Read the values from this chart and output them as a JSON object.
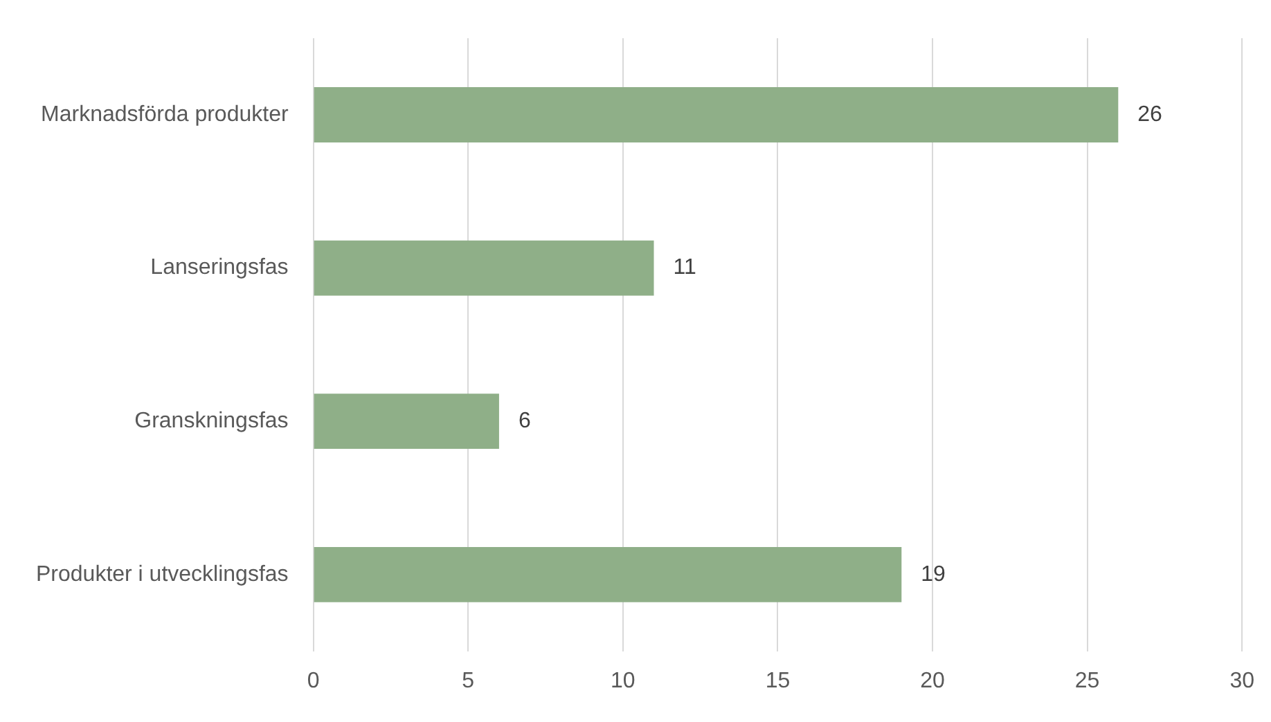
{
  "chart_data": {
    "type": "bar",
    "orientation": "horizontal",
    "categories": [
      "Marknadsförda produkter",
      "Lanseringsfas",
      "Granskningsfas",
      "Produkter i utvecklingsfas"
    ],
    "values": [
      26,
      11,
      6,
      19
    ],
    "color": "#8faf88",
    "xlim": [
      0,
      30
    ],
    "xticks": [
      0,
      5,
      10,
      15,
      20,
      25,
      30
    ],
    "grid": "x",
    "data_labels": true
  }
}
